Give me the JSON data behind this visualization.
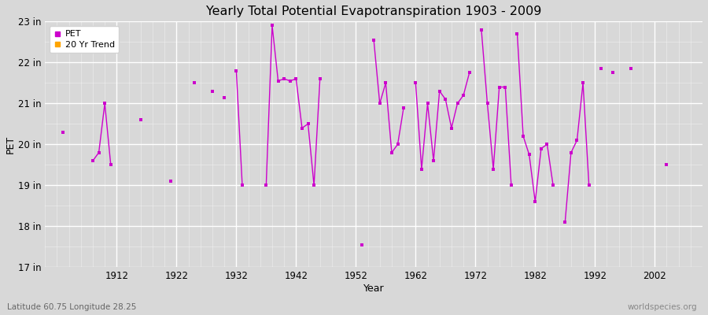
{
  "title": "Yearly Total Potential Evapotranspiration 1903 - 2009",
  "xlabel": "Year",
  "ylabel": "PET",
  "background_color": "#d8d8d8",
  "plot_background_color": "#d8d8d8",
  "line_color": "#cc00cc",
  "trend_color": "#ffa500",
  "ylim": [
    17,
    23
  ],
  "ytick_labels": [
    "17 in",
    "18 in",
    "19 in",
    "20 in",
    "21 in",
    "22 in",
    "23 in"
  ],
  "ytick_values": [
    17,
    18,
    19,
    20,
    21,
    22,
    23
  ],
  "xlim": [
    1900,
    2010
  ],
  "xtick_values": [
    1912,
    1922,
    1932,
    1942,
    1952,
    1962,
    1972,
    1982,
    1992,
    2002
  ],
  "watermark": "worldspecies.org",
  "lat_lon_label": "Latitude 60.75 Longitude 28.25",
  "data_segments": [
    {
      "years": [
        1903
      ],
      "values": [
        20.3
      ]
    },
    {
      "years": [
        1908,
        1909,
        1910,
        1911
      ],
      "values": [
        19.6,
        19.8,
        21.0,
        19.5
      ]
    },
    {
      "years": [
        1916
      ],
      "values": [
        20.6
      ]
    },
    {
      "years": [
        1921
      ],
      "values": [
        19.1
      ]
    },
    {
      "years": [
        1925
      ],
      "values": [
        21.5
      ]
    },
    {
      "years": [
        1928
      ],
      "values": [
        21.3
      ]
    },
    {
      "years": [
        1930
      ],
      "values": [
        21.15
      ]
    },
    {
      "years": [
        1932,
        1933
      ],
      "values": [
        21.8,
        19.0
      ]
    },
    {
      "years": [
        1937,
        1938,
        1939,
        1940,
        1941,
        1942,
        1943,
        1944,
        1945,
        1946
      ],
      "values": [
        19.0,
        22.9,
        21.55,
        21.6,
        21.55,
        21.6,
        20.4,
        20.5,
        19.0,
        21.6
      ]
    },
    {
      "years": [
        1953
      ],
      "values": [
        17.55
      ]
    },
    {
      "years": [
        1955,
        1956,
        1957,
        1958,
        1959,
        1960
      ],
      "values": [
        22.55,
        21.0,
        21.5,
        19.8,
        20.0,
        20.9
      ]
    },
    {
      "years": [
        1962,
        1963,
        1964,
        1965,
        1966,
        1967,
        1968,
        1969,
        1970,
        1971
      ],
      "values": [
        21.5,
        19.4,
        21.0,
        19.6,
        21.3,
        21.1,
        20.4,
        21.0,
        21.2,
        21.75
      ]
    },
    {
      "years": [
        1973,
        1974,
        1975,
        1976,
        1977,
        1978
      ],
      "values": [
        22.8,
        21.0,
        19.4,
        21.4,
        21.4,
        19.0
      ]
    },
    {
      "years": [
        1979,
        1980,
        1981,
        1982,
        1983,
        1984,
        1985
      ],
      "values": [
        22.7,
        20.2,
        19.75,
        18.6,
        19.9,
        20.0,
        19.0
      ]
    },
    {
      "years": [
        1987,
        1988,
        1989,
        1990,
        1991
      ],
      "values": [
        18.1,
        19.8,
        20.1,
        21.5,
        19.0
      ]
    },
    {
      "years": [
        1993
      ],
      "values": [
        21.85
      ]
    },
    {
      "years": [
        1995
      ],
      "values": [
        21.75
      ]
    },
    {
      "years": [
        1998
      ],
      "values": [
        21.85
      ]
    },
    {
      "years": [
        2004
      ],
      "values": [
        19.5
      ]
    }
  ]
}
